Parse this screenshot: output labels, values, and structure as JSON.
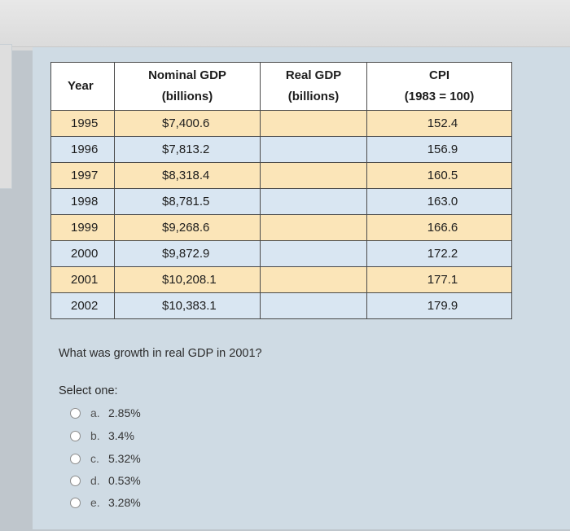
{
  "table": {
    "headers": {
      "year": "Year",
      "nominal_gdp_line1": "Nominal GDP",
      "nominal_gdp_line2": "(billions)",
      "real_gdp_line1": "Real GDP",
      "real_gdp_line2": "(billions)",
      "cpi_line1": "CPI",
      "cpi_line2": "(1983 = 100)"
    },
    "rows": [
      {
        "year": "1995",
        "nominal_gdp": "$7,400.6",
        "real_gdp": "",
        "cpi": "152.4"
      },
      {
        "year": "1996",
        "nominal_gdp": "$7,813.2",
        "real_gdp": "",
        "cpi": "156.9"
      },
      {
        "year": "1997",
        "nominal_gdp": "$8,318.4",
        "real_gdp": "",
        "cpi": "160.5"
      },
      {
        "year": "1998",
        "nominal_gdp": "$8,781.5",
        "real_gdp": "",
        "cpi": "163.0"
      },
      {
        "year": "1999",
        "nominal_gdp": "$9,268.6",
        "real_gdp": "",
        "cpi": "166.6"
      },
      {
        "year": "2000",
        "nominal_gdp": "$9,872.9",
        "real_gdp": "",
        "cpi": "172.2"
      },
      {
        "year": "2001",
        "nominal_gdp": "$10,208.1",
        "real_gdp": "",
        "cpi": "177.1"
      },
      {
        "year": "2002",
        "nominal_gdp": "$10,383.1",
        "real_gdp": "",
        "cpi": "179.9"
      }
    ]
  },
  "question": {
    "text": "What was growth in real GDP in 2001?",
    "select_label": "Select one:",
    "options": [
      {
        "letter": "a.",
        "value": "2.85%"
      },
      {
        "letter": "b.",
        "value": "3.4%"
      },
      {
        "letter": "c.",
        "value": "5.32%"
      },
      {
        "letter": "d.",
        "value": "0.53%"
      },
      {
        "letter": "e.",
        "value": "3.28%"
      }
    ]
  }
}
